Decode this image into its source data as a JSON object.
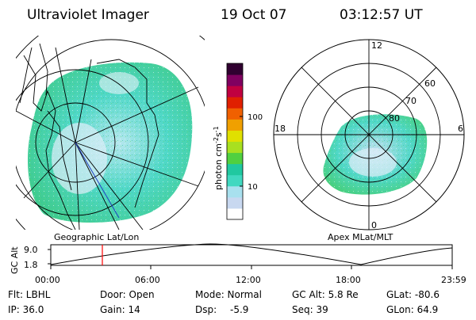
{
  "header": {
    "title": "Ultraviolet Imager",
    "date": "19 Oct 07",
    "time": "03:12:57 UT"
  },
  "colorbar": {
    "label": "photon cm",
    "label_sup": "-2",
    "label_s": "s",
    "label_s_sup": "-1",
    "tick_labels": [
      "100",
      "10"
    ],
    "colors": [
      "#ffffff",
      "#c8d8f0",
      "#a8e0ee",
      "#40d8c0",
      "#20c8a0",
      "#50d040",
      "#a8e020",
      "#e0e000",
      "#f0a000",
      "#f06000",
      "#e02000",
      "#c00040",
      "#800060",
      "#300030"
    ]
  },
  "geo_panel": {
    "label": "Geographic Lat/Lon"
  },
  "polar_panel": {
    "label": "Apex MLat/MLT",
    "mlt_labels": [
      "12",
      "18",
      "6",
      "0"
    ],
    "lat_labels": [
      "60",
      "70",
      "80"
    ]
  },
  "altitude_plot": {
    "ylabel": "GC Alt",
    "ytick_labels": [
      "9.0",
      "1.8"
    ],
    "xtick_labels": [
      "00:00",
      "06:00",
      "12:00",
      "18:00",
      "23:59"
    ],
    "marker_color": "#ff0000"
  },
  "info": {
    "row1": {
      "filter": "Flt: LBHL",
      "door": "Door: Open",
      "mode": "Mode: Normal",
      "gc_alt": "GC Alt: 5.8 Re",
      "glat": "GLat: -80.6"
    },
    "row2": {
      "ip": "IP: 36.0",
      "gain": "Gain: 14",
      "dsp_label": "Dsp:",
      "dsp_value": "-5.9",
      "seq": "Seq: 39",
      "glon": "GLon: 64.9"
    }
  }
}
